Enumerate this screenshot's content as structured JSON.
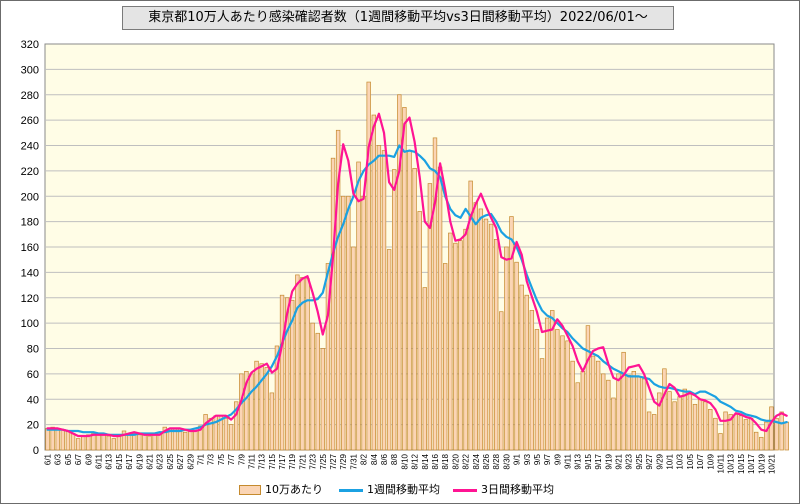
{
  "chart_data": {
    "type": "bar+line",
    "title": "東京都10万人あたり感染確認者数（1週間移動平均vs3日間移動平均）2022/06/01〜",
    "xlabel": "",
    "ylabel": "",
    "ylim": [
      0,
      320
    ],
    "yticks": [
      0,
      20,
      40,
      60,
      80,
      100,
      120,
      140,
      160,
      180,
      200,
      220,
      240,
      260,
      280,
      300,
      320
    ],
    "grid": true,
    "legend_position": "bottom",
    "start_date": "2022-06-01",
    "end_date": "2022-10-21",
    "x_tick_labels": [
      "6/1",
      "6/3",
      "6/5",
      "6/7",
      "6/9",
      "6/11",
      "6/13",
      "6/15",
      "6/17",
      "6/19",
      "6/21",
      "6/23",
      "6/25",
      "6/27",
      "6/29",
      "7/1",
      "7/3",
      "7/5",
      "7/7",
      "7/9",
      "7/11",
      "7/13",
      "7/15",
      "7/17",
      "7/19",
      "7/21",
      "7/23",
      "7/25",
      "7/27",
      "7/29",
      "7/31",
      "8/2",
      "8/4",
      "8/6",
      "8/8",
      "8/10",
      "8/12",
      "8/14",
      "8/16",
      "8/18",
      "8/20",
      "8/22",
      "8/24",
      "8/26",
      "8/28",
      "8/30",
      "9/1",
      "9/3",
      "9/5",
      "9/7",
      "9/9",
      "9/11",
      "9/13",
      "9/15",
      "9/17",
      "9/19",
      "9/21",
      "9/23",
      "9/25",
      "9/27",
      "9/29",
      "10/1",
      "10/3",
      "10/5",
      "10/7",
      "10/9",
      "10/11",
      "10/13",
      "10/15",
      "10/17",
      "10/19",
      "10/21"
    ],
    "colors": {
      "bar_fill": "#fbd5b5",
      "bar_stroke": "#c58a2e",
      "weekly": "#1ba1e2",
      "three_day": "#ff1493",
      "grid": "#bfbfbf"
    },
    "series": [
      {
        "name": "10万あたり",
        "kind": "bar",
        "values": [
          17,
          18,
          17,
          16,
          15,
          13,
          9,
          11,
          12,
          13,
          12,
          12,
          11,
          9,
          12,
          15,
          13,
          13,
          12,
          12,
          11,
          12,
          14,
          18,
          17,
          17,
          17,
          14,
          15,
          15,
          19,
          28,
          25,
          27,
          27,
          25,
          20,
          38,
          60,
          62,
          60,
          70,
          68,
          65,
          45,
          82,
          122,
          120,
          118,
          138,
          136,
          135,
          100,
          92,
          80,
          147,
          230,
          252,
          200,
          200,
          160,
          227,
          200,
          290,
          264,
          240,
          236,
          158,
          221,
          280,
          270,
          236,
          222,
          188,
          128,
          210,
          246,
          223,
          147,
          171,
          163,
          165,
          174,
          212,
          195,
          190,
          182,
          178,
          166,
          109,
          160,
          184,
          148,
          130,
          122,
          110,
          95,
          72,
          104,
          110,
          95,
          90,
          86,
          70,
          53,
          62,
          98,
          74,
          70,
          60,
          55,
          41,
          60,
          77,
          59,
          62,
          58,
          56,
          30,
          28,
          45,
          64,
          46,
          38,
          42,
          48,
          44,
          36,
          40,
          38,
          32,
          25,
          13,
          30,
          28,
          28,
          27,
          24,
          25,
          14,
          10,
          22,
          34,
          25,
          30,
          22
        ]
      },
      {
        "name": "1週間移動平均",
        "kind": "line",
        "values": [
          16,
          16,
          16,
          16,
          15,
          15,
          15,
          14,
          14,
          14,
          13,
          13,
          12,
          12,
          12,
          12,
          12,
          12,
          13,
          13,
          13,
          13,
          14,
          14,
          15,
          15,
          15,
          16,
          16,
          17,
          18,
          20,
          21,
          22,
          24,
          26,
          28,
          32,
          37,
          41,
          46,
          50,
          55,
          60,
          66,
          74,
          84,
          94,
          102,
          112,
          116,
          118,
          118,
          119,
          124,
          140,
          155,
          168,
          178,
          190,
          200,
          212,
          220,
          225,
          228,
          232,
          232,
          232,
          231,
          240,
          235,
          236,
          235,
          232,
          228,
          222,
          220,
          215,
          200,
          190,
          185,
          183,
          190,
          184,
          178,
          183,
          185,
          186,
          180,
          172,
          168,
          166,
          160,
          150,
          138,
          128,
          118,
          110,
          106,
          104,
          100,
          96,
          93,
          88,
          84,
          80,
          78,
          76,
          74,
          70,
          67,
          64,
          62,
          60,
          58,
          58,
          58,
          57,
          56,
          52,
          50,
          49,
          49,
          48,
          47,
          46,
          46,
          44,
          46,
          46,
          44,
          42,
          38,
          36,
          34,
          31,
          30,
          28,
          27,
          26,
          24,
          23,
          23,
          22,
          21,
          22
        ]
      },
      {
        "name": "3日間移動平均",
        "kind": "line",
        "values": [
          17,
          17,
          17,
          16,
          15,
          13,
          11,
          11,
          11,
          12,
          12,
          12,
          12,
          11,
          11,
          12,
          13,
          14,
          13,
          12,
          12,
          12,
          12,
          15,
          17,
          17,
          17,
          16,
          15,
          15,
          16,
          21,
          24,
          27,
          27,
          27,
          24,
          28,
          39,
          53,
          61,
          64,
          66,
          68,
          61,
          64,
          83,
          108,
          125,
          131,
          135,
          137,
          124,
          109,
          91,
          106,
          152,
          210,
          241,
          228,
          202,
          196,
          198,
          239,
          255,
          265,
          250,
          211,
          205,
          220,
          257,
          262,
          243,
          215,
          180,
          175,
          195,
          226,
          205,
          180,
          165,
          166,
          170,
          184,
          194,
          202,
          192,
          183,
          175,
          152,
          150,
          151,
          164,
          154,
          133,
          121,
          109,
          93,
          94,
          95,
          103,
          98,
          90,
          82,
          70,
          62,
          71,
          78,
          80,
          81,
          68,
          57,
          55,
          59,
          65,
          66,
          67,
          60,
          49,
          38,
          35,
          44,
          52,
          49,
          42,
          43,
          45,
          43,
          40,
          39,
          37,
          32,
          23,
          23,
          24,
          29,
          28,
          26,
          25,
          21,
          16,
          15,
          22,
          27,
          29,
          27
        ]
      }
    ],
    "legend": [
      "10万あたり",
      "1週間移動平均",
      "3日間移動平均"
    ]
  }
}
